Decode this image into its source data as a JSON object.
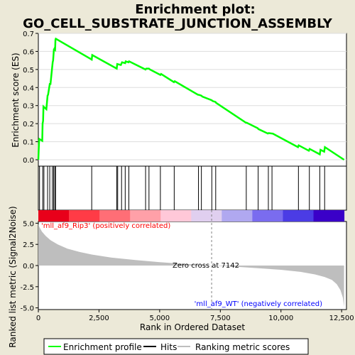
{
  "chart_data": {
    "type": "line",
    "title": "Enrichment plot:\nGO_CELL_SUBSTRATE_JUNCTION_ASSEMBLY",
    "title_lines": [
      "Enrichment plot:",
      "GO_CELL_SUBSTRATE_JUNCTION_ASSEMBLY"
    ],
    "xlabel": "Rank in Ordered Dataset",
    "top_panel": {
      "ylabel": "Enrichment score (ES)",
      "ylim": [
        0,
        0.7
      ],
      "yticks": [
        0.0,
        0.1,
        0.2,
        0.3,
        0.4,
        0.5,
        0.6,
        0.7
      ],
      "ytick_labels": [
        "0.0",
        "0.1",
        "0.2",
        "0.3",
        "0.4",
        "0.5",
        "0.6",
        "0.7"
      ],
      "line_color": "#00ff00",
      "es_profile": {
        "x": [
          0,
          30,
          40,
          160,
          175,
          195,
          210,
          330,
          380,
          400,
          470,
          500,
          590,
          610,
          640,
          660,
          690,
          705,
          720,
          2200,
          2220,
          3230,
          3250,
          3400,
          3450,
          3580,
          3600,
          3720,
          3740,
          4420,
          4450,
          4560,
          4600,
          5030,
          5060,
          5590,
          5620,
          6580,
          6610,
          6720,
          6760,
          7140,
          7190,
          7300,
          7330,
          8560,
          8590,
          9040,
          9070,
          9460,
          9490,
          9630,
          9660,
          10700,
          10730,
          11150,
          11180,
          11600,
          11630,
          11780,
          11810,
          12600
        ],
        "y": [
          0.0,
          0.105,
          0.115,
          0.105,
          0.2,
          0.215,
          0.295,
          0.28,
          0.355,
          0.36,
          0.42,
          0.42,
          0.54,
          0.55,
          0.61,
          0.615,
          0.61,
          0.665,
          0.67,
          0.555,
          0.58,
          0.505,
          0.53,
          0.525,
          0.54,
          0.535,
          0.545,
          0.54,
          0.545,
          0.5,
          0.505,
          0.505,
          0.5,
          0.47,
          0.475,
          0.43,
          0.435,
          0.36,
          0.36,
          0.355,
          0.35,
          0.33,
          0.325,
          0.32,
          0.315,
          0.205,
          0.205,
          0.175,
          0.17,
          0.145,
          0.148,
          0.145,
          0.145,
          0.07,
          0.08,
          0.05,
          0.06,
          0.03,
          0.055,
          0.045,
          0.07,
          0.0
        ]
      }
    },
    "hits": [
      0,
      50,
      180,
      230,
      380,
      470,
      580,
      630,
      680,
      710,
      2200,
      3230,
      3270,
      3430,
      3580,
      3730,
      4420,
      4560,
      5030,
      5600,
      6600,
      6720,
      7150,
      7310,
      8570,
      9060,
      9480,
      9630,
      10720,
      11170,
      11600,
      11800
    ],
    "ranked_list_colorbar": [
      "#e8001a",
      "#ff3b46",
      "#ff6e76",
      "#ffa0a8",
      "#ffc8d8",
      "#e0cfef",
      "#b0a8f0",
      "#7a6cef",
      "#4b3ce5",
      "#3a00c8"
    ],
    "bottom_panel": {
      "ylabel": "Ranked list metric (Signal2Noise)",
      "ylim": [
        -5.2,
        5.2
      ],
      "yticks": [
        5.0,
        2.5,
        0.0,
        -2.5,
        -5.0
      ],
      "ytick_labels": [
        "5.0",
        "2.5",
        "0.0",
        "-2.5",
        "-5.0"
      ],
      "metric": {
        "x": [
          0,
          50,
          150,
          300,
          500,
          800,
          1200,
          1700,
          2200,
          3000,
          4000,
          5000,
          6000,
          7142,
          8000,
          9000,
          10000,
          10800,
          11400,
          11800,
          12100,
          12300,
          12450,
          12550,
          12600
        ],
        "y": [
          4.9,
          4.5,
          4.0,
          3.5,
          3.0,
          2.5,
          2.0,
          1.6,
          1.3,
          0.95,
          0.65,
          0.4,
          0.2,
          0.0,
          -0.12,
          -0.3,
          -0.5,
          -0.75,
          -1.05,
          -1.35,
          -1.7,
          -2.2,
          -2.9,
          -3.8,
          -4.9
        ]
      },
      "zero_cross": 7142,
      "zero_cross_label": "Zero cross at 7142",
      "pos_label": "'mll_af9_Rip3' (positively correlated)",
      "neg_label": "'mll_af9_WT' (negatively correlated)"
    },
    "xlim": [
      0,
      12700
    ],
    "xticks": [
      0,
      2500,
      5000,
      7500,
      10000,
      12500
    ],
    "xtick_labels": [
      "0",
      "2,500",
      "5,000",
      "7,500",
      "10,000",
      "12,500"
    ],
    "legend": {
      "placement": "bottom",
      "items": [
        {
          "label": "Enrichment profile",
          "color": "#00ff00"
        },
        {
          "label": "Hits",
          "color": "#000000"
        },
        {
          "label": "Ranking metric scores",
          "color": "#bebebe"
        }
      ]
    }
  }
}
